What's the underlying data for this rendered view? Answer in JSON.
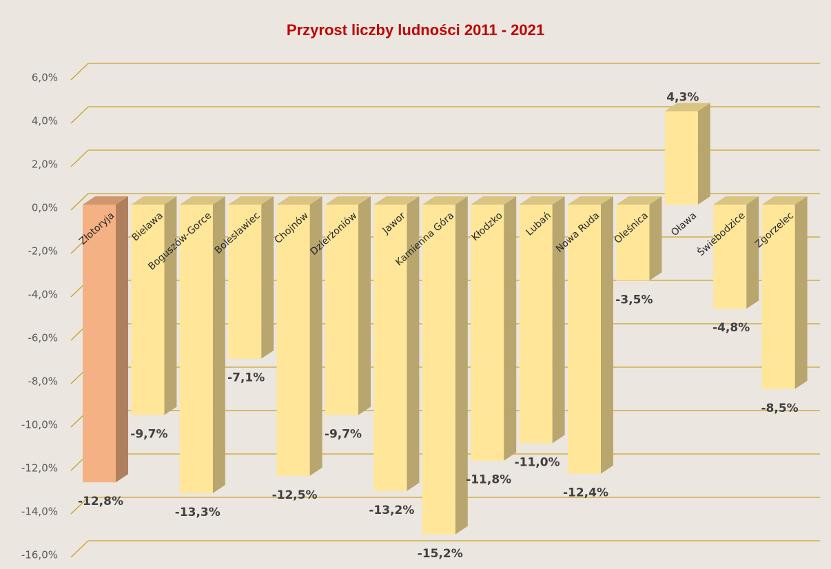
{
  "chart_data": {
    "type": "bar3d",
    "title": "Przyrost liczby ludności 2011 - 2021",
    "categories": [
      "Złotoryja",
      "Bielawa",
      "Boguszów-Gorce",
      "Bolesławiec",
      "Chojnów",
      "Dzierżoniów",
      "Jawor",
      "Kamienna Góra",
      "Kłodzko",
      "Lubań",
      "Nowa Ruda",
      "Oleśnica",
      "Oława",
      "Świebodzice",
      "Zgorzelec"
    ],
    "values": [
      -12.8,
      -9.7,
      -13.3,
      -7.1,
      -12.5,
      -9.7,
      -13.2,
      -15.2,
      -11.8,
      -11.0,
      -12.4,
      -3.5,
      4.3,
      -4.8,
      -8.5
    ],
    "value_labels": [
      "-12,8%",
      "-9,7%",
      "-13,3%",
      "-7,1%",
      "-12,5%",
      "-9,7%",
      "-13,2%",
      "-15,2%",
      "-11,8%",
      "-11,0%",
      "-12,4%",
      "-3,5%",
      "4,3%",
      "-4,8%",
      "-8,5%"
    ],
    "colors": [
      "#f4b183",
      "#ffe699",
      "#ffe699",
      "#ffe699",
      "#ffe699",
      "#ffe699",
      "#ffe699",
      "#ffe699",
      "#ffe699",
      "#ffe699",
      "#ffe699",
      "#ffe699",
      "#ffe699",
      "#ffe699",
      "#ffe699"
    ],
    "ylim": [
      -16,
      6
    ],
    "yticks": [
      {
        "value": 6,
        "label": "6,0%"
      },
      {
        "value": 4,
        "label": "4,0%"
      },
      {
        "value": 2,
        "label": "2,0%"
      },
      {
        "value": 0,
        "label": "0,0%"
      },
      {
        "value": -2,
        "label": "-2,0%"
      },
      {
        "value": -4,
        "label": "-4,0%"
      },
      {
        "value": -6,
        "label": "-6,0%"
      },
      {
        "value": -8,
        "label": "-8,0%"
      },
      {
        "value": -10,
        "label": "-10,0%"
      },
      {
        "value": -12,
        "label": "-12,0%"
      },
      {
        "value": -14,
        "label": "-14,0%"
      },
      {
        "value": -16,
        "label": "-16,0%"
      }
    ],
    "grid": true
  }
}
